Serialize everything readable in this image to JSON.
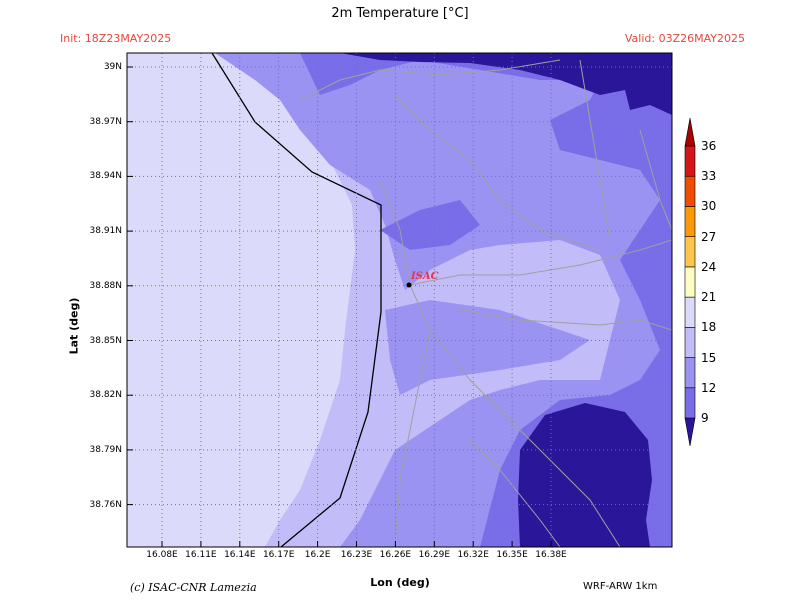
{
  "map": {
    "title": "2m Temperature [°C]",
    "init_label": "Init: 18Z23MAY2025",
    "valid_label": "Valid: 03Z26MAY2025",
    "xlabel": "Lon (deg)",
    "ylabel": "Lat (deg)",
    "credit": "(c) ISAC-CNR Lamezia",
    "model": "WRF-ARW 1km",
    "station_label": "ISAC",
    "lon_ticks": [
      "16.08E",
      "16.11E",
      "16.14E",
      "16.17E",
      "16.2E",
      "16.23E",
      "16.26E",
      "16.29E",
      "16.32E",
      "16.35E",
      "16.38E"
    ],
    "lat_ticks": [
      "39N",
      "38.97N",
      "38.94N",
      "38.91N",
      "38.88N",
      "38.85N",
      "38.82N",
      "38.79N",
      "38.76N"
    ],
    "colorbar": {
      "levels": [
        "9",
        "12",
        "15",
        "18",
        "21",
        "24",
        "27",
        "30",
        "33",
        "36"
      ],
      "colors": [
        "#2a1699",
        "#7a6ee8",
        "#9b93f2",
        "#c2bcf8",
        "#dcdafa",
        "#fefdc4",
        "#fdc54d",
        "#fb9a06",
        "#f04d00",
        "#d3161a",
        "#a90000"
      ]
    },
    "fill_colors": {
      "coldest": "#2a1699",
      "cold": "#7a6ee8",
      "mid": "#9b93f2",
      "mild": "#c2bcf8",
      "warm": "#dcdafa",
      "grid": "#777777",
      "roads": "#a0a0a0",
      "coast": "#000000"
    }
  }
}
